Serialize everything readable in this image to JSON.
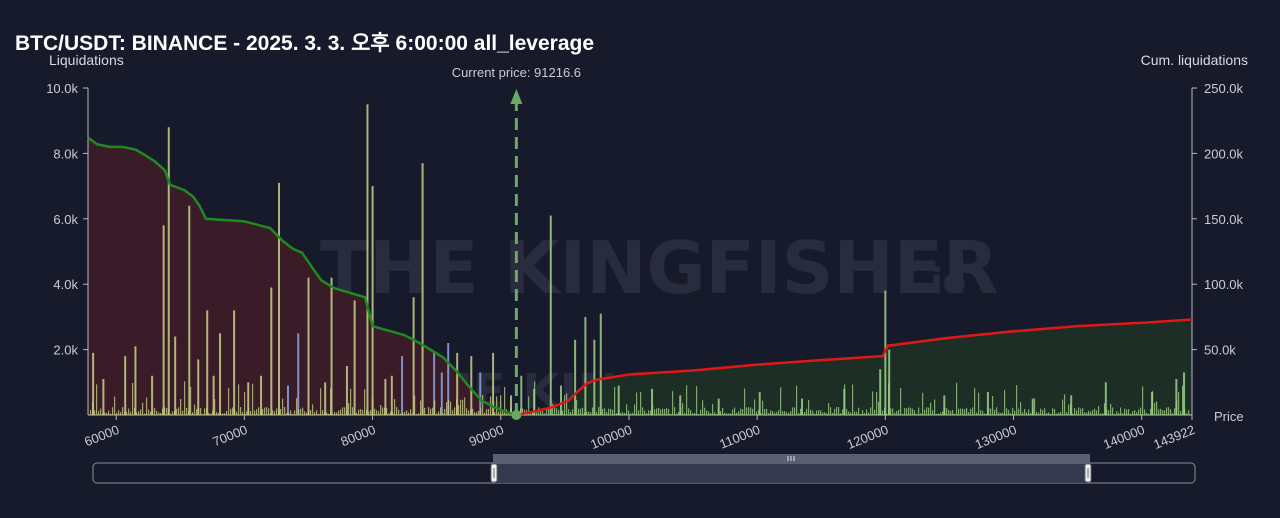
{
  "title": "BTC/USDT: BINANCE - 2025. 3. 3. 오후 6:00:00 all_leverage",
  "watermark": {
    "text": "THE KINGFISHER",
    "suffix": ".io"
  },
  "colors": {
    "background": "#161a2b",
    "short_cum_line": "#1f8a1f",
    "long_cum_line": "#e01818",
    "short_fill": "#3a1c28",
    "long_fill": "#1d2e26",
    "bar_primary": "#c8cf8a",
    "bar_secondary": "#8fa6e0",
    "bar_green": "#9fd08a",
    "current_price_line": "#6aaa64"
  },
  "navigator": {
    "handle_icon": "grip-icon",
    "range_start": 90000,
    "range_end": 143922
  },
  "chart_data": {
    "type": "bar",
    "title": "BTC/USDT: BINANCE - 2025. 3. 3. 오후 6:00:00 all_leverage",
    "xlabel": "Price",
    "ylabel": "Liquidations",
    "y2label": "Cum. liquidations",
    "xlim": [
      57800,
      143922
    ],
    "ylim": [
      0,
      10000
    ],
    "y2lim": [
      0,
      250000
    ],
    "x_ticks": [
      "60000",
      "70000",
      "80000",
      "90000",
      "100000",
      "110000",
      "120000",
      "130000",
      "140000",
      "143922"
    ],
    "y_ticks": [
      "10.0k",
      "8.0k",
      "6.0k",
      "4.0k",
      "2.0k"
    ],
    "y2_ticks": [
      "250.0k",
      "200.0k",
      "150.0k",
      "100.0k",
      "50.0k"
    ],
    "current_price": 91216.6,
    "current_price_label": "Current price: 91216.6",
    "major_bars": [
      {
        "x": 58200,
        "value": 1900,
        "color": "primary"
      },
      {
        "x": 59000,
        "value": 1100,
        "color": "primary"
      },
      {
        "x": 60700,
        "value": 1800,
        "color": "primary"
      },
      {
        "x": 61500,
        "value": 2100,
        "color": "primary"
      },
      {
        "x": 62800,
        "value": 1200,
        "color": "primary"
      },
      {
        "x": 63700,
        "value": 5800,
        "color": "primary"
      },
      {
        "x": 64100,
        "value": 8800,
        "color": "primary"
      },
      {
        "x": 64600,
        "value": 2400,
        "color": "primary"
      },
      {
        "x": 65700,
        "value": 6400,
        "color": "primary"
      },
      {
        "x": 66400,
        "value": 1700,
        "color": "primary"
      },
      {
        "x": 67100,
        "value": 3200,
        "color": "primary"
      },
      {
        "x": 67600,
        "value": 1200,
        "color": "primary"
      },
      {
        "x": 68100,
        "value": 2500,
        "color": "primary"
      },
      {
        "x": 69200,
        "value": 3200,
        "color": "primary"
      },
      {
        "x": 70300,
        "value": 1000,
        "color": "primary"
      },
      {
        "x": 71300,
        "value": 1200,
        "color": "primary"
      },
      {
        "x": 72100,
        "value": 3900,
        "color": "primary"
      },
      {
        "x": 72700,
        "value": 7100,
        "color": "primary"
      },
      {
        "x": 73400,
        "value": 900,
        "color": "secondary"
      },
      {
        "x": 74200,
        "value": 2500,
        "color": "secondary"
      },
      {
        "x": 75000,
        "value": 4200,
        "color": "primary"
      },
      {
        "x": 76300,
        "value": 1000,
        "color": "primary"
      },
      {
        "x": 76800,
        "value": 4200,
        "color": "primary"
      },
      {
        "x": 78000,
        "value": 1500,
        "color": "primary"
      },
      {
        "x": 78600,
        "value": 3500,
        "color": "primary"
      },
      {
        "x": 79600,
        "value": 9500,
        "color": "primary"
      },
      {
        "x": 80000,
        "value": 7000,
        "color": "primary"
      },
      {
        "x": 81000,
        "value": 1100,
        "color": "primary"
      },
      {
        "x": 81500,
        "value": 1200,
        "color": "primary"
      },
      {
        "x": 82300,
        "value": 1800,
        "color": "secondary"
      },
      {
        "x": 83200,
        "value": 3600,
        "color": "primary"
      },
      {
        "x": 83900,
        "value": 7700,
        "color": "primary"
      },
      {
        "x": 84800,
        "value": 1900,
        "color": "secondary"
      },
      {
        "x": 85400,
        "value": 1300,
        "color": "secondary"
      },
      {
        "x": 85900,
        "value": 2200,
        "color": "secondary"
      },
      {
        "x": 86600,
        "value": 1900,
        "color": "primary"
      },
      {
        "x": 87700,
        "value": 1800,
        "color": "primary"
      },
      {
        "x": 88400,
        "value": 1300,
        "color": "secondary"
      },
      {
        "x": 89400,
        "value": 1900,
        "color": "primary"
      },
      {
        "x": 90800,
        "value": 600,
        "color": "primary"
      },
      {
        "x": 91600,
        "value": 1200,
        "color": "green"
      },
      {
        "x": 92600,
        "value": 800,
        "color": "green"
      },
      {
        "x": 93900,
        "value": 6100,
        "color": "green"
      },
      {
        "x": 94700,
        "value": 900,
        "color": "green"
      },
      {
        "x": 95800,
        "value": 2300,
        "color": "green"
      },
      {
        "x": 96600,
        "value": 3000,
        "color": "green"
      },
      {
        "x": 97300,
        "value": 2300,
        "color": "green"
      },
      {
        "x": 97800,
        "value": 3100,
        "color": "green"
      },
      {
        "x": 99200,
        "value": 900,
        "color": "green"
      },
      {
        "x": 101800,
        "value": 800,
        "color": "green"
      },
      {
        "x": 104000,
        "value": 600,
        "color": "green"
      },
      {
        "x": 107000,
        "value": 500,
        "color": "green"
      },
      {
        "x": 110200,
        "value": 700,
        "color": "green"
      },
      {
        "x": 113500,
        "value": 500,
        "color": "green"
      },
      {
        "x": 116800,
        "value": 800,
        "color": "green"
      },
      {
        "x": 119600,
        "value": 1400,
        "color": "green"
      },
      {
        "x": 120000,
        "value": 3800,
        "color": "green"
      },
      {
        "x": 120300,
        "value": 2000,
        "color": "green"
      },
      {
        "x": 124600,
        "value": 600,
        "color": "green"
      },
      {
        "x": 128000,
        "value": 700,
        "color": "green"
      },
      {
        "x": 131500,
        "value": 500,
        "color": "green"
      },
      {
        "x": 134500,
        "value": 600,
        "color": "green"
      },
      {
        "x": 137200,
        "value": 1000,
        "color": "green"
      },
      {
        "x": 140800,
        "value": 700,
        "color": "green"
      },
      {
        "x": 142700,
        "value": 1100,
        "color": "green"
      },
      {
        "x": 143300,
        "value": 1300,
        "color": "green"
      }
    ],
    "series": [
      {
        "role": "short_cumulative",
        "x": [
          57800,
          58500,
          59500,
          60500,
          61500,
          62200,
          63000,
          63800,
          64200,
          65300,
          66000,
          66500,
          67000,
          70000,
          72000,
          73000,
          73800,
          74500,
          75200,
          76000,
          77000,
          79400,
          80000,
          80700,
          82500,
          83500,
          84500,
          85500,
          86500,
          87500,
          88500,
          89500,
          90500,
          91216.6
        ],
        "values": [
          212000,
          207000,
          205000,
          205000,
          203000,
          199000,
          194000,
          187000,
          176000,
          172000,
          167000,
          160000,
          150000,
          148000,
          143000,
          133000,
          127000,
          124000,
          114000,
          103000,
          97000,
          90000,
          68000,
          66000,
          61000,
          56000,
          50000,
          44000,
          34000,
          22000,
          11000,
          6000,
          2000,
          0
        ]
      },
      {
        "role": "long_cumulative",
        "x": [
          91216.6,
          92500,
          94000,
          95300,
          96000,
          96700,
          97500,
          100000,
          105000,
          110000,
          115000,
          119800,
          120200,
          125000,
          130000,
          135000,
          140000,
          143922
        ],
        "values": [
          0,
          2500,
          6000,
          11000,
          18000,
          24000,
          27000,
          31000,
          34000,
          38500,
          42000,
          45000,
          53000,
          59000,
          64000,
          68000,
          70500,
          73000
        ]
      }
    ]
  }
}
